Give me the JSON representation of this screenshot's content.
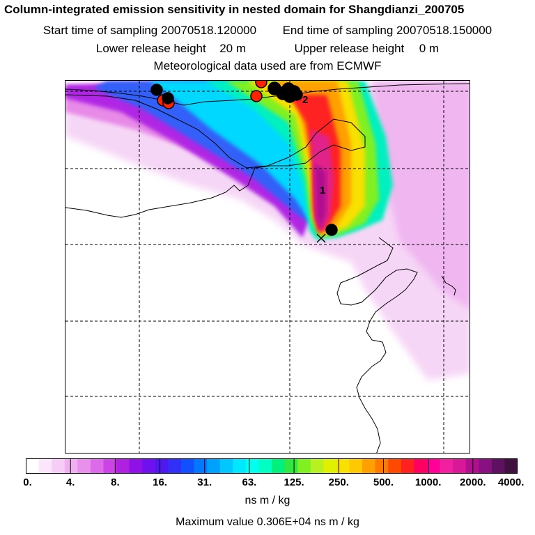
{
  "header": {
    "title": "Column-integrated emission sensitivity in nested domain for Shangdianzi_200705",
    "start_label": "Start time of sampling",
    "start_value": "20070518.120000",
    "end_label": "End time of sampling",
    "end_value": "20070518.150000",
    "lower_label": "Lower release height",
    "lower_value": "20 m",
    "upper_label": "Upper release height",
    "upper_value": "0 m",
    "met_line": "Meteorological data used are from ECMWF"
  },
  "map": {
    "cluster_labels": [
      "1",
      "2"
    ],
    "colors": {
      "magenta_core": "#e0208a",
      "red_marker": "#ff2200",
      "black_marker": "#000000"
    }
  },
  "colorbar": {
    "tick_labels": [
      "0.",
      "4.",
      "8.",
      "16.",
      "31.",
      "63.",
      "125.",
      "250.",
      "500.",
      "1000.",
      "2000.",
      "4000."
    ],
    "units": "ns m / kg",
    "colors": [
      "#ffffff",
      "#fbe6fb",
      "#f6cdf6",
      "#f0b0f0",
      "#e890ec",
      "#dd6ae8",
      "#cc44e6",
      "#b020e0",
      "#9010e8",
      "#7010ee",
      "#5018f0",
      "#3030f8",
      "#1050ff",
      "#0078ff",
      "#00a0ff",
      "#00c8ff",
      "#00e8ff",
      "#00ffee",
      "#00ffc0",
      "#00f080",
      "#30e840",
      "#80f020",
      "#b8f020",
      "#e0f000",
      "#f8e000",
      "#ffc800",
      "#ffa000",
      "#ff7800",
      "#ff4800",
      "#ff2020",
      "#ff0060",
      "#ff0098",
      "#f020a0",
      "#d81898",
      "#b01090",
      "#881080",
      "#601060",
      "#401040"
    ]
  },
  "footer": {
    "max_label": "Maximum value",
    "max_value": "0.306E+04",
    "max_units": "ns m / kg"
  }
}
